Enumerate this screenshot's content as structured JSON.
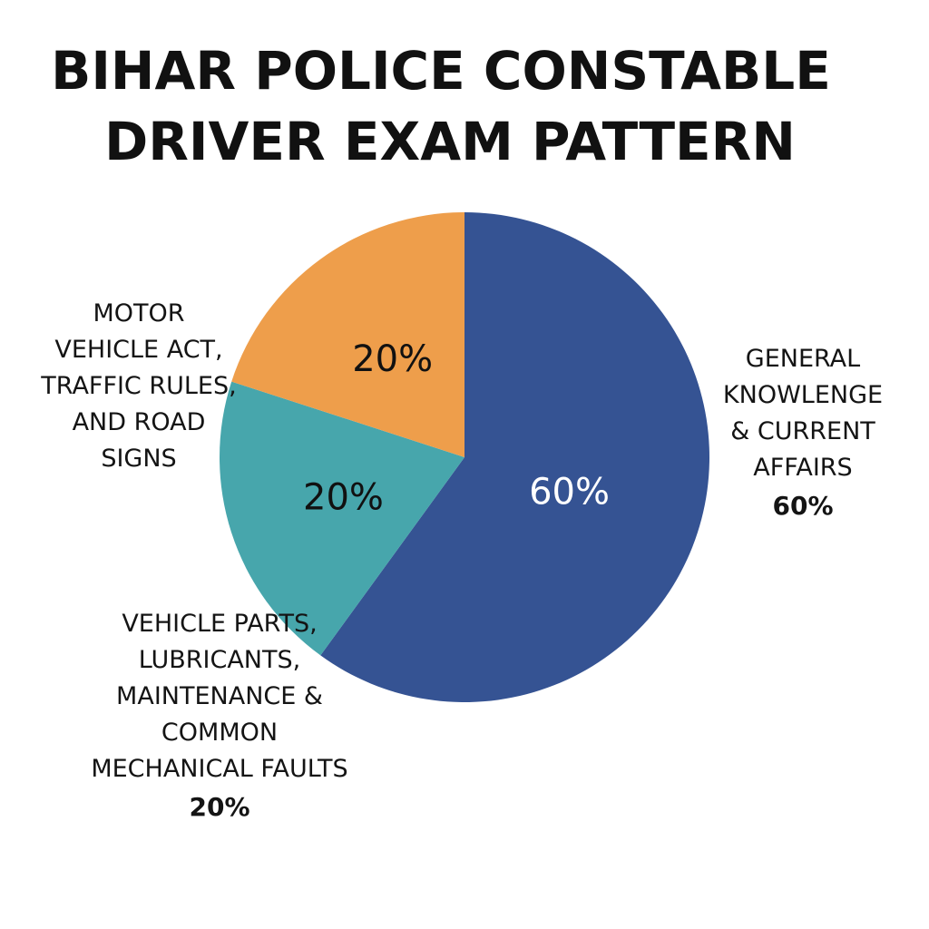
{
  "title_lines": [
    "BIHAR POLICE CONSTABLE",
    "DRIVER EXAM PATTERN"
  ],
  "chart_data": {
    "type": "pie",
    "title": "BIHAR POLICE CONSTABLE DRIVER EXAM PATTERN",
    "categories": [
      "GENERAL KNOWLENGE & CURRENT AFFAIRS",
      "VEHICLE PARTS, LUBRICANTS, MAINTENANCE & COMMON MECHANICAL FAULTS",
      "MOTOR VEHICLE ACT, TRAFFIC RULES, AND ROAD SIGNS"
    ],
    "values": [
      60,
      20,
      20
    ],
    "slice_labels": [
      "60%",
      "20%",
      "20%"
    ],
    "colors": [
      "#355393",
      "#47A6AC",
      "#EE9E4B"
    ],
    "slice_label_colors": [
      "#ffffff",
      "#111111",
      "#111111"
    ]
  },
  "labels": {
    "gk": {
      "lines": [
        "GENERAL",
        "KNOWLENGE",
        "& CURRENT",
        "AFFAIRS"
      ],
      "pct": "60%"
    },
    "mva": {
      "lines": [
        "MOTOR",
        "VEHICLE ACT,",
        "TRAFFIC RULES,",
        "AND ROAD",
        "SIGNS"
      ]
    },
    "vp": {
      "lines": [
        "VEHICLE PARTS,",
        "LUBRICANTS,",
        "MAINTENANCE &",
        "COMMON",
        "MECHANICAL FAULTS"
      ],
      "pct": "20%"
    }
  }
}
